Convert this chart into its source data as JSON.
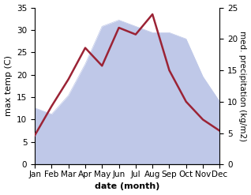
{
  "months": [
    "Jan",
    "Feb",
    "Mar",
    "Apr",
    "May",
    "Jun",
    "Jul",
    "Aug",
    "Sep",
    "Oct",
    "Nov",
    "Dec"
  ],
  "temperature": [
    6.5,
    13.0,
    19.0,
    26.0,
    22.0,
    30.5,
    29.0,
    33.5,
    21.0,
    14.0,
    10.0,
    7.5
  ],
  "precipitation": [
    9,
    8,
    11,
    16,
    22,
    23,
    22,
    21,
    21,
    20,
    14,
    10
  ],
  "temp_color": "#9b2335",
  "precip_fill_color": "#bfc8e8",
  "temp_ylim": [
    0,
    35
  ],
  "precip_ylim": [
    0,
    25
  ],
  "temp_yticks": [
    0,
    5,
    10,
    15,
    20,
    25,
    30,
    35
  ],
  "precip_yticks": [
    0,
    5,
    10,
    15,
    20,
    25
  ],
  "xlabel": "date (month)",
  "ylabel_left": "max temp (C)",
  "ylabel_right": "med. precipitation (kg/m2)",
  "label_fontsize": 8,
  "tick_fontsize": 7.5,
  "line_width": 1.8,
  "background_color": "#ffffff"
}
